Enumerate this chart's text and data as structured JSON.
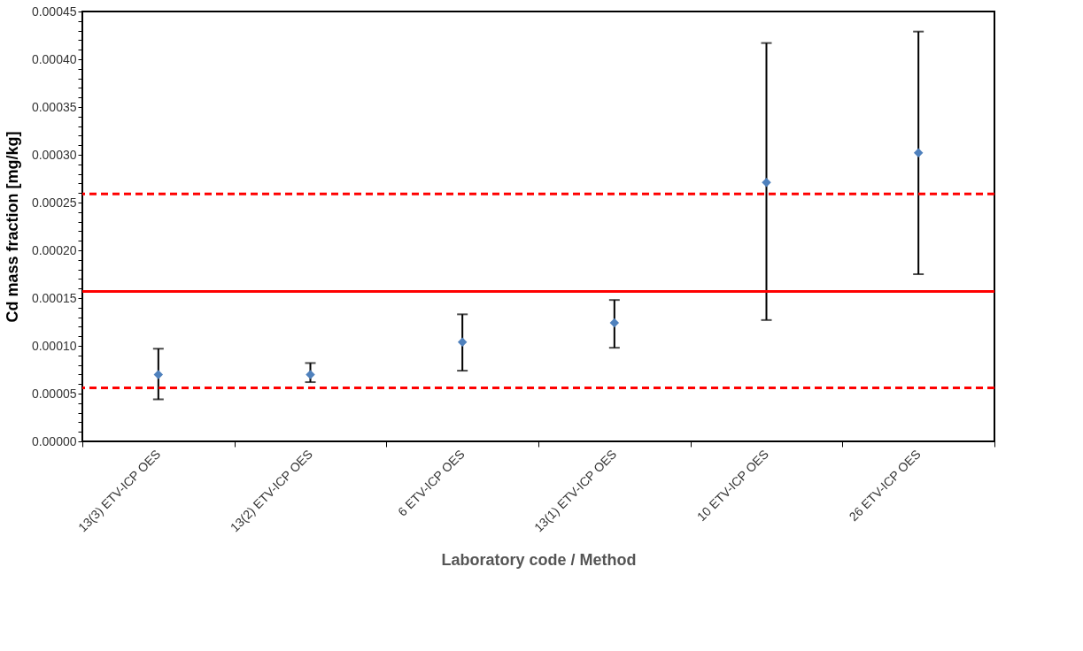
{
  "chart_data": {
    "type": "scatter",
    "xlabel": "Laboratory code / Method",
    "ylabel": "Cd mass fraction [mg/kg]",
    "categories": [
      "13(3)  ETV-ICP OES",
      "13(2)  ETV-ICP OES",
      "6  ETV-ICP OES",
      "13(1)  ETV-ICP OES",
      "10  ETV-ICP OES",
      "26  ETV-ICP OES"
    ],
    "values": [
      7e-05,
      7e-05,
      0.000104,
      0.000124,
      0.000271,
      0.000302
    ],
    "errors": [
      [
        4.4e-05,
        9.7e-05
      ],
      [
        6.2e-05,
        8.2e-05
      ],
      [
        7.4e-05,
        0.000133
      ],
      [
        9.8e-05,
        0.000148
      ],
      [
        0.000127,
        0.000417
      ],
      [
        0.000175,
        0.000429
      ]
    ],
    "color": "#4f81bd",
    "marker": "diamond",
    "ylim": [
      0,
      0.00045
    ],
    "yticks": [
      {
        "value": 0,
        "label": "0.00000"
      },
      {
        "value": 1e-05,
        "label": null
      },
      {
        "value": 2e-05,
        "label": null
      },
      {
        "value": 3e-05,
        "label": null
      },
      {
        "value": 4e-05,
        "label": null
      },
      {
        "value": 5e-05,
        "label": "0.00005"
      },
      {
        "value": 6e-05,
        "label": null
      },
      {
        "value": 7e-05,
        "label": null
      },
      {
        "value": 8e-05,
        "label": null
      },
      {
        "value": 9e-05,
        "label": null
      },
      {
        "value": 0.0001,
        "label": "0.00010"
      },
      {
        "value": 0.00011,
        "label": null
      },
      {
        "value": 0.00012,
        "label": null
      },
      {
        "value": 0.00013,
        "label": null
      },
      {
        "value": 0.00014,
        "label": null
      },
      {
        "value": 0.00015,
        "label": "0.00015"
      },
      {
        "value": 0.00016,
        "label": null
      },
      {
        "value": 0.00017,
        "label": null
      },
      {
        "value": 0.00018,
        "label": null
      },
      {
        "value": 0.00019,
        "label": null
      },
      {
        "value": 0.0002,
        "label": "0.00020"
      },
      {
        "value": 0.00021,
        "label": null
      },
      {
        "value": 0.00022,
        "label": null
      },
      {
        "value": 0.00023,
        "label": null
      },
      {
        "value": 0.00024,
        "label": null
      },
      {
        "value": 0.00025,
        "label": "0.00025"
      },
      {
        "value": 0.00026,
        "label": null
      },
      {
        "value": 0.00027,
        "label": null
      },
      {
        "value": 0.00028,
        "label": null
      },
      {
        "value": 0.00029,
        "label": null
      },
      {
        "value": 0.0003,
        "label": "0.00030"
      },
      {
        "value": 0.00031,
        "label": null
      },
      {
        "value": 0.00032,
        "label": null
      },
      {
        "value": 0.00033,
        "label": null
      },
      {
        "value": 0.00034,
        "label": null
      },
      {
        "value": 0.00035,
        "label": "0.00035"
      },
      {
        "value": 0.00036,
        "label": null
      },
      {
        "value": 0.00037,
        "label": null
      },
      {
        "value": 0.00038,
        "label": null
      },
      {
        "value": 0.00039,
        "label": null
      },
      {
        "value": 0.0004,
        "label": "0.00040"
      },
      {
        "value": 0.00041,
        "label": null
      },
      {
        "value": 0.00042,
        "label": null
      },
      {
        "value": 0.00043,
        "label": null
      },
      {
        "value": 0.00044,
        "label": null
      },
      {
        "value": 0.00045,
        "label": "0.00045"
      }
    ],
    "grid": false,
    "ref_lines": [
      {
        "axis": "y",
        "value": 0.000259,
        "color": "#ff0000",
        "line_style": "dashed"
      },
      {
        "axis": "y",
        "value": 0.000157,
        "color": "#ff0000",
        "line_style": "solid"
      },
      {
        "axis": "y",
        "value": 5.6e-05,
        "color": "#ff0000",
        "line_style": "dashed"
      }
    ]
  }
}
